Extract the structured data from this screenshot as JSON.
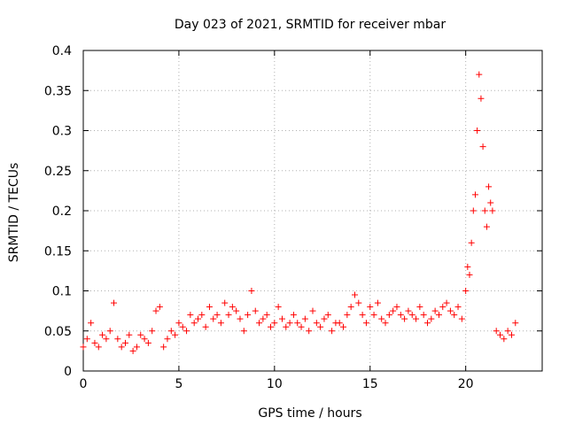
{
  "chart_data": {
    "type": "scatter",
    "title": "Day 023 of 2021, SRMTID for receiver mbar",
    "xlabel": "GPS time / hours",
    "ylabel": "SRMTID / TECUs",
    "xlim": [
      0,
      24
    ],
    "ylim": [
      0,
      0.4
    ],
    "xticks": [
      0,
      5,
      10,
      15,
      20
    ],
    "xtick_labels": [
      "0",
      "5",
      "10",
      "15",
      "20"
    ],
    "yticks": [
      0,
      0.05,
      0.1,
      0.15,
      0.2,
      0.25,
      0.3,
      0.35,
      0.4
    ],
    "ytick_labels": [
      "0",
      "0.05",
      "0.1",
      "0.15",
      "0.2",
      "0.25",
      "0.3",
      "0.35",
      "0.4"
    ],
    "grid": true,
    "marker": "+",
    "series": [
      {
        "name": "SRMTID",
        "color": "#ff0000",
        "x": [
          0.0,
          0.2,
          0.4,
          0.6,
          0.8,
          1.0,
          1.2,
          1.4,
          1.6,
          1.8,
          2.0,
          2.2,
          2.4,
          2.6,
          2.8,
          3.0,
          3.2,
          3.4,
          3.6,
          3.8,
          4.0,
          4.2,
          4.4,
          4.6,
          4.8,
          5.0,
          5.2,
          5.4,
          5.6,
          5.8,
          6.0,
          6.2,
          6.4,
          6.6,
          6.8,
          7.0,
          7.2,
          7.4,
          7.6,
          7.8,
          8.0,
          8.2,
          8.4,
          8.6,
          8.8,
          9.0,
          9.2,
          9.4,
          9.6,
          9.8,
          10.0,
          10.2,
          10.4,
          10.6,
          10.8,
          11.0,
          11.2,
          11.4,
          11.6,
          11.8,
          12.0,
          12.2,
          12.4,
          12.6,
          12.8,
          13.0,
          13.2,
          13.4,
          13.6,
          13.8,
          14.0,
          14.2,
          14.4,
          14.6,
          14.8,
          15.0,
          15.2,
          15.4,
          15.6,
          15.8,
          16.0,
          16.2,
          16.4,
          16.6,
          16.8,
          17.0,
          17.2,
          17.4,
          17.6,
          17.8,
          18.0,
          18.2,
          18.4,
          18.6,
          18.8,
          19.0,
          19.2,
          19.4,
          19.6,
          19.8,
          20.0,
          20.1,
          20.2,
          20.3,
          20.4,
          20.5,
          20.6,
          20.7,
          20.8,
          20.9,
          21.0,
          21.1,
          21.2,
          21.3,
          21.4,
          21.6,
          21.8,
          22.0,
          22.2,
          22.4,
          22.6
        ],
        "y": [
          0.03,
          0.04,
          0.06,
          0.035,
          0.03,
          0.045,
          0.04,
          0.05,
          0.085,
          0.04,
          0.03,
          0.035,
          0.045,
          0.025,
          0.03,
          0.045,
          0.04,
          0.035,
          0.05,
          0.075,
          0.08,
          0.03,
          0.04,
          0.05,
          0.045,
          0.06,
          0.055,
          0.05,
          0.07,
          0.06,
          0.065,
          0.07,
          0.055,
          0.08,
          0.065,
          0.07,
          0.06,
          0.085,
          0.07,
          0.08,
          0.075,
          0.065,
          0.05,
          0.07,
          0.1,
          0.075,
          0.06,
          0.065,
          0.07,
          0.055,
          0.06,
          0.08,
          0.065,
          0.055,
          0.06,
          0.07,
          0.06,
          0.055,
          0.065,
          0.05,
          0.075,
          0.06,
          0.055,
          0.065,
          0.07,
          0.05,
          0.06,
          0.06,
          0.055,
          0.07,
          0.08,
          0.095,
          0.085,
          0.07,
          0.06,
          0.08,
          0.07,
          0.085,
          0.065,
          0.06,
          0.07,
          0.075,
          0.08,
          0.07,
          0.065,
          0.075,
          0.07,
          0.065,
          0.08,
          0.07,
          0.06,
          0.065,
          0.075,
          0.07,
          0.08,
          0.085,
          0.075,
          0.07,
          0.08,
          0.065,
          0.1,
          0.13,
          0.12,
          0.16,
          0.2,
          0.22,
          0.3,
          0.37,
          0.34,
          0.28,
          0.2,
          0.18,
          0.23,
          0.21,
          0.2,
          0.05,
          0.045,
          0.04,
          0.05,
          0.045,
          0.06
        ]
      }
    ]
  }
}
